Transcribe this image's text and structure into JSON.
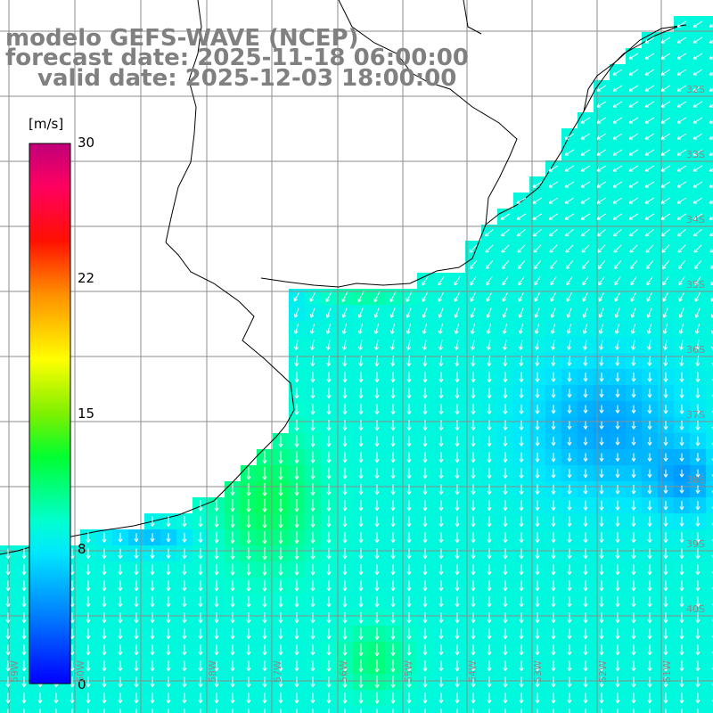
{
  "title": {
    "model": "modelo GEFS-WAVE (NCEP)",
    "forecast": "forecast date: 2025-11-18 06:00:00",
    "valid": "valid date: 2025-12-03 18:00:00"
  },
  "colorbar": {
    "unit": "[m/s]",
    "ticks": [
      "30",
      "22",
      "15",
      "8",
      "0"
    ],
    "range": [
      0,
      30
    ],
    "colors": [
      "#0000ff",
      "#0080ff",
      "#00ffff",
      "#00ff80",
      "#00ff00",
      "#80ff00",
      "#ffff00",
      "#ff8000",
      "#ff0000",
      "#ff0080",
      "#c0006c"
    ]
  },
  "lat_labels": [
    "32S",
    "33S",
    "34S",
    "35S",
    "36S",
    "37S",
    "38S",
    "39S",
    "40S"
  ],
  "lon_labels": [
    "60W",
    "59W",
    "58W",
    "57W",
    "56W",
    "55W",
    "54W",
    "53W",
    "52W",
    "51W"
  ],
  "colors": {
    "land": "#ffffff",
    "grid": "#8c8c8c",
    "coast": "#000000",
    "arrow": "#ffffff",
    "title": "#808080"
  }
}
